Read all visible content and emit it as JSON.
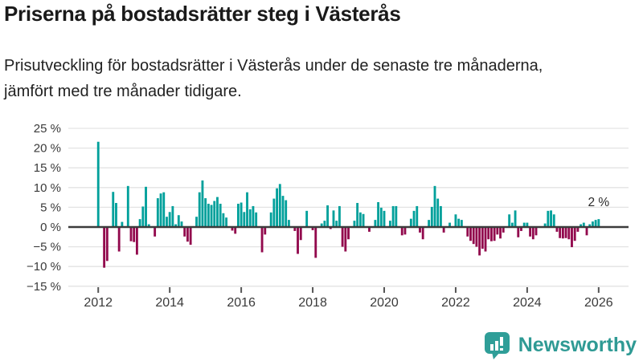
{
  "header": {
    "title": "Priserna på bostadsrätter steg i Västerås",
    "subtitle": "Prisutveckling för bostadsrätter i Västerås under de senaste tre månaderna, jämfört med tre månader tidigare."
  },
  "chart_data": {
    "type": "bar",
    "title": "Priserna på bostadsrätter steg i Västerås",
    "subtitle": "Prisutveckling för bostadsrätter i Västerås under de senaste tre månaderna, jämfört med tre månader tidigare.",
    "unit": "%",
    "frequency": "monthly",
    "x_start": "2012-01",
    "x_end": "2026-01",
    "ylim": [
      -15,
      25
    ],
    "grid": true,
    "values": [
      21.6,
      0,
      -10.3,
      -8.6,
      0,
      8.9,
      6.1,
      -6.2,
      1.3,
      0,
      10.4,
      -3.6,
      -3.8,
      -7.0,
      2.0,
      5.2,
      10.2,
      0.7,
      0,
      -2.4,
      7.3,
      8.5,
      8.8,
      2.6,
      3.8,
      5.3,
      0.7,
      3.0,
      1.4,
      -2.4,
      -3.7,
      -4.5,
      0,
      2.6,
      8.8,
      11.8,
      7.3,
      5.9,
      5.6,
      6.6,
      7.6,
      5.9,
      3.5,
      2.4,
      0,
      -0.9,
      -1.7,
      5.9,
      6.2,
      3.8,
      8.8,
      4.5,
      5.3,
      3.7,
      0,
      -6.4,
      -1.9,
      0,
      3.7,
      7.2,
      9.8,
      10.9,
      7.9,
      6.8,
      1.8,
      0,
      -1.0,
      -6.8,
      -3.3,
      0,
      4.1,
      0,
      -0.8,
      -7.8,
      0,
      0.9,
      1.6,
      5.5,
      -0.5,
      4.2,
      1.6,
      5.3,
      -5.0,
      -6.2,
      -3.1,
      0,
      1.6,
      6.1,
      3.7,
      3.3,
      0,
      -1.2,
      0,
      1.8,
      6.3,
      4.9,
      4.1,
      0,
      1.6,
      5.3,
      5.3,
      0,
      -2.1,
      -1.9,
      0,
      2.1,
      4.1,
      5.3,
      -1.4,
      -3.1,
      0,
      1.8,
      5.1,
      10.4,
      7.2,
      5.3,
      -1.4,
      0,
      1.1,
      0,
      3.2,
      2.1,
      1.8,
      0,
      -2.4,
      -3.5,
      -4.3,
      -5.0,
      -7.2,
      -5.5,
      -6.2,
      -3.1,
      -3.6,
      -3.5,
      -1.9,
      -2.9,
      -1.4,
      0,
      3.2,
      1.1,
      4.2,
      -2.6,
      -1.0,
      1.1,
      1.1,
      -2.4,
      -3.1,
      -2.1,
      0,
      0,
      0.9,
      4.1,
      4.2,
      3.2,
      -1.2,
      -2.8,
      -2.9,
      -2.8,
      -3.1,
      -5.1,
      -3.5,
      -1.2,
      0.7,
      1.1,
      -2.1,
      0.7,
      1.4,
      1.8,
      2.0
    ],
    "y_ticks": [
      {
        "value": 25,
        "label": "25 %"
      },
      {
        "value": 20,
        "label": "20 %"
      },
      {
        "value": 15,
        "label": "15 %"
      },
      {
        "value": 10,
        "label": "10 %"
      },
      {
        "value": 5,
        "label": "5 %"
      },
      {
        "value": 0,
        "label": "0 %"
      },
      {
        "value": -5,
        "label": "−5 %"
      },
      {
        "value": -10,
        "label": "−10 %"
      },
      {
        "value": -15,
        "label": "−15 %"
      }
    ],
    "x_tick_years": [
      2012,
      2014,
      2016,
      2018,
      2020,
      2022,
      2024,
      2026
    ],
    "annotation": {
      "text": "2 %",
      "target": "last-bar"
    },
    "legend": "none",
    "colors": {
      "positive": "#00a09b",
      "negative": "#92094d",
      "grid": "#e3e3e3",
      "zero_line": "#3b3b3b",
      "axis_text": "#3a3a3a",
      "annotation_text": "#2b2b2b"
    }
  },
  "footer": {
    "brand": "Newsworthy",
    "logo_icon": "bar-chart-speech-bubble-icon",
    "brand_color": "#2f9a94"
  }
}
